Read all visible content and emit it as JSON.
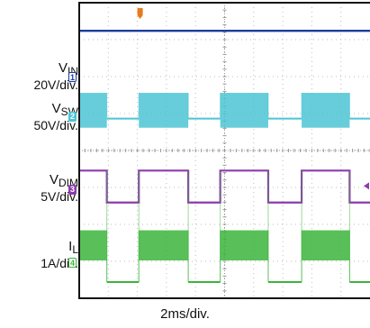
{
  "chart_data": {
    "type": "line",
    "timebase": "2ms/div.",
    "colors": {
      "vin": "#1c3c9c",
      "vsw": "#4cc4d4",
      "vdim": "#8c3cac",
      "il": "#3cb43c",
      "grid": "#bdbdbd",
      "frame": "#111111"
    },
    "channels": [
      {
        "symbol": "V",
        "sub": "IN",
        "marker": "1",
        "scale": "20V/div.",
        "kind": "dc",
        "level_frac": 0.095
      },
      {
        "symbol": "V",
        "sub": "SW",
        "marker": "2",
        "scale": "50V/div.",
        "kind": "burst",
        "base_frac": 0.392,
        "high_frac": 0.305,
        "low_frac": 0.423
      },
      {
        "symbol": "V",
        "sub": "DIM",
        "marker": "3",
        "scale": "5V/div.",
        "kind": "square",
        "high_frac": 0.568,
        "low_frac": 0.676
      },
      {
        "symbol": "I",
        "sub": "L",
        "marker": "4",
        "scale": "1A/div.",
        "kind": "burst",
        "base_frac": 0.945,
        "high_frac": 0.77,
        "low_frac": 0.872
      }
    ],
    "pwm": {
      "on_intervals_div": [
        [
          0.0,
          0.95
        ],
        [
          2.05,
          3.75
        ],
        [
          4.85,
          6.5
        ],
        [
          7.65,
          9.3
        ]
      ],
      "x_range_div": [
        0,
        10
      ]
    }
  }
}
